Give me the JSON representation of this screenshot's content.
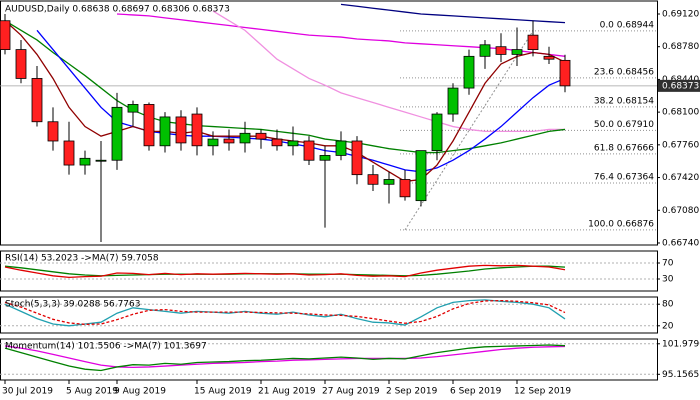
{
  "chart_data": [
    {
      "type": "candlestick",
      "title": "AUDUSD,Daily  0.68638 0.68697 0.68306 0.68373",
      "categories": [
        "30 Jul 2019",
        null,
        null,
        null,
        "5 Aug 2019",
        null,
        null,
        "9 Aug 2019",
        null,
        null,
        null,
        null,
        "15 Aug 2019",
        null,
        null,
        null,
        "21 Aug 2019",
        null,
        null,
        null,
        "27 Aug 2019",
        null,
        null,
        null,
        "2 Sep 2019",
        null,
        null,
        null,
        "6 Sep 2019",
        null,
        null,
        null,
        "12 Sep 2019",
        null,
        null,
        null
      ],
      "open": [
        0.6905,
        0.6875,
        0.6845,
        0.68,
        0.678,
        0.6755,
        0.676,
        0.676,
        0.681,
        0.6818,
        0.6775,
        0.6805,
        0.6808,
        0.6775,
        0.6782,
        0.6778,
        0.6788,
        0.6782,
        0.6775,
        0.678,
        0.676,
        0.6765,
        0.678,
        0.6745,
        0.6735,
        0.674,
        0.6718,
        0.677,
        0.6808,
        0.6835,
        0.6868,
        0.6878,
        0.687,
        0.689,
        0.6868,
        0.68638
      ],
      "high": [
        0.6912,
        0.6885,
        0.6858,
        0.6815,
        0.68,
        0.677,
        0.678,
        0.683,
        0.6822,
        0.682,
        0.681,
        0.6812,
        0.6815,
        0.679,
        0.6792,
        0.68,
        0.6792,
        0.6792,
        0.6795,
        0.6785,
        0.6775,
        0.679,
        0.6785,
        0.6755,
        0.6748,
        0.675,
        0.677,
        0.681,
        0.684,
        0.6875,
        0.6885,
        0.6892,
        0.6898,
        0.6905,
        0.6878,
        0.68697
      ],
      "low": [
        0.687,
        0.684,
        0.6795,
        0.677,
        0.6745,
        0.6745,
        0.6675,
        0.675,
        0.6795,
        0.677,
        0.6768,
        0.677,
        0.6765,
        0.6765,
        0.677,
        0.6768,
        0.6772,
        0.677,
        0.6765,
        0.6755,
        0.669,
        0.676,
        0.6735,
        0.6728,
        0.6715,
        0.6718,
        0.6712,
        0.676,
        0.68,
        0.6828,
        0.6855,
        0.6862,
        0.6858,
        0.6868,
        0.686,
        0.68306
      ],
      "close": [
        0.6875,
        0.6845,
        0.68,
        0.678,
        0.6755,
        0.6762,
        0.676,
        0.6815,
        0.6818,
        0.6775,
        0.6805,
        0.6778,
        0.6775,
        0.6782,
        0.6778,
        0.6788,
        0.6782,
        0.6775,
        0.678,
        0.676,
        0.6765,
        0.678,
        0.6745,
        0.6735,
        0.674,
        0.6722,
        0.677,
        0.6808,
        0.6835,
        0.6868,
        0.688,
        0.687,
        0.6875,
        0.6875,
        0.6865,
        0.68373
      ],
      "up_color": "#00c000",
      "down_color": "#ff2020",
      "series": [
        {
          "color": "#000080",
          "values": [
            null,
            null,
            null,
            null,
            null,
            null,
            null,
            null,
            null,
            null,
            null,
            null,
            null,
            null,
            null,
            null,
            null,
            null,
            null,
            null,
            null,
            0.6922,
            0.692,
            0.6918,
            0.6916,
            0.6914,
            0.6912,
            0.6911,
            0.691,
            0.6909,
            0.6908,
            0.6907,
            0.6906,
            0.6905,
            0.6904,
            0.6903
          ]
        },
        {
          "color": "#e000e0",
          "values": [
            null,
            null,
            null,
            null,
            null,
            null,
            null,
            0.6912,
            0.6911,
            0.691,
            0.6908,
            0.6906,
            0.6904,
            0.6902,
            0.69,
            0.6898,
            0.6896,
            0.6894,
            0.6892,
            0.689,
            0.6889,
            0.6888,
            0.6886,
            0.6885,
            0.6884,
            0.6882,
            0.6881,
            0.688,
            0.6879,
            0.6878,
            0.6877,
            0.6876,
            0.6874,
            0.6872,
            0.687,
            0.6868
          ]
        },
        {
          "color": "#f090e0",
          "values": [
            null,
            null,
            null,
            null,
            null,
            null,
            null,
            null,
            null,
            null,
            null,
            null,
            null,
            0.6915,
            0.6905,
            0.6895,
            0.688,
            0.6865,
            0.6855,
            0.6845,
            0.6838,
            0.683,
            0.6825,
            0.682,
            0.6815,
            0.681,
            0.6805,
            0.68,
            0.6795,
            0.6792,
            0.679,
            0.679,
            0.679,
            0.679,
            0.6792,
            0.6792
          ]
        },
        {
          "color": "#008000",
          "values": [
            0.6905,
            0.6895,
            0.6885,
            0.6872,
            0.686,
            0.6848,
            0.6835,
            0.6822,
            0.6812,
            0.6805,
            0.68,
            0.6798,
            0.6796,
            0.6795,
            0.6794,
            0.6793,
            0.6792,
            0.679,
            0.6788,
            0.6786,
            0.6782,
            0.678,
            0.6778,
            0.6775,
            0.6772,
            0.677,
            0.6768,
            0.6768,
            0.677,
            0.6772,
            0.6775,
            0.6778,
            0.6782,
            0.6786,
            0.679,
            0.6792
          ]
        },
        {
          "color": "#0000ff",
          "values": [
            null,
            null,
            0.6895,
            0.6875,
            0.6855,
            0.6835,
            0.6815,
            0.68,
            0.6795,
            0.679,
            0.6788,
            0.6786,
            0.6785,
            0.6785,
            0.6784,
            0.6783,
            0.6782,
            0.678,
            0.6777,
            0.6774,
            0.677,
            0.6768,
            0.6764,
            0.676,
            0.6755,
            0.675,
            0.6748,
            0.6752,
            0.676,
            0.677,
            0.6782,
            0.6795,
            0.681,
            0.6825,
            0.6838,
            0.6845
          ]
        },
        {
          "color": "#900000",
          "values": [
            0.6905,
            0.689,
            0.687,
            0.6845,
            0.6815,
            0.6795,
            0.6785,
            0.679,
            0.6795,
            0.679,
            0.679,
            0.6788,
            0.679,
            0.6785,
            0.6785,
            0.6785,
            0.6785,
            0.6782,
            0.678,
            0.6778,
            0.6775,
            0.6775,
            0.6768,
            0.6758,
            0.6748,
            0.6738,
            0.674,
            0.6755,
            0.678,
            0.681,
            0.684,
            0.686,
            0.6868,
            0.6872,
            0.687,
            0.6862
          ]
        }
      ],
      "levels": [
        {
          "label": "0.0 0.68944",
          "value": 0.68944
        },
        {
          "label": "23.6 0.68456",
          "value": 0.68456
        },
        {
          "label": "38.2 0.68154",
          "value": 0.68154
        },
        {
          "label": "50.0 0.67910",
          "value": 0.6791
        },
        {
          "label": "61.8 0.67666",
          "value": 0.67666
        },
        {
          "label": "76.4 0.67364",
          "value": 0.67364
        },
        {
          "label": "100.0 0.66876",
          "value": 0.66876
        }
      ],
      "current_price": {
        "value": 0.68373,
        "label": "0.68373"
      },
      "ylim": [
        0.66719,
        0.69255
      ],
      "yticks": [
        {
          "value": 0.6912,
          "label": "0.69120"
        },
        {
          "value": 0.6878,
          "label": "0.68780"
        },
        {
          "value": 0.6844,
          "label": "0.68440"
        },
        {
          "value": 0.681,
          "label": "0.68100"
        },
        {
          "value": 0.6776,
          "label": "0.67760"
        },
        {
          "value": 0.6742,
          "label": "0.67420"
        },
        {
          "value": 0.6708,
          "label": "0.67080"
        },
        {
          "value": 0.6674,
          "label": "0.66740"
        }
      ]
    },
    {
      "type": "line",
      "title": "RSI(14) 53.2023 ->MA(7) 59.7058",
      "ylim": [
        0,
        100
      ],
      "yticks": [
        70,
        30
      ],
      "series": [
        {
          "color": "#008000",
          "values": [
            62,
            58,
            53,
            48,
            43,
            40,
            38,
            39,
            40,
            41,
            42,
            42,
            42,
            42,
            42,
            43,
            43,
            43,
            43,
            42,
            42,
            42,
            41,
            40,
            39,
            38,
            39,
            42,
            46,
            50,
            55,
            58,
            60,
            62,
            62,
            59.7058
          ]
        },
        {
          "color": "#e00000",
          "values": [
            60,
            52,
            45,
            38,
            34,
            36,
            37,
            45,
            44,
            41,
            44,
            41,
            43,
            42,
            43,
            44,
            43,
            42,
            43,
            40,
            41,
            43,
            39,
            37,
            38,
            36,
            45,
            52,
            57,
            62,
            64,
            63,
            64,
            62,
            60,
            53.2023
          ]
        }
      ]
    },
    {
      "type": "line",
      "title": "Stoch(5,3,3) 39.0288 56.7763",
      "ylim": [
        0,
        100
      ],
      "yticks": [
        80,
        20
      ],
      "series": [
        {
          "color": "#20a0b0",
          "values": [
            80,
            60,
            40,
            25,
            20,
            25,
            30,
            55,
            70,
            65,
            60,
            55,
            60,
            58,
            55,
            60,
            55,
            52,
            58,
            50,
            45,
            52,
            40,
            30,
            28,
            22,
            45,
            70,
            85,
            90,
            92,
            88,
            85,
            80,
            70,
            39.0288
          ]
        },
        {
          "color": "#e00000",
          "style": "dashed",
          "values": [
            85,
            72,
            55,
            38,
            28,
            24,
            25,
            37,
            52,
            63,
            65,
            60,
            58,
            58,
            58,
            58,
            57,
            56,
            55,
            53,
            50,
            49,
            46,
            40,
            33,
            27,
            32,
            46,
            67,
            82,
            89,
            90,
            88,
            84,
            78,
            56.7763
          ]
        }
      ]
    },
    {
      "type": "line",
      "title": "Momentum(14) 101.5506 ->MA(7) 101.3697",
      "ylim": [
        93.88,
        103.05
      ],
      "yticks": [
        101.9796,
        95.1565
      ],
      "series": [
        {
          "color": "#e000e0",
          "values": [
            101.5,
            101.0,
            100.4,
            99.6,
            98.8,
            98.0,
            97.2,
            96.8,
            96.7,
            96.8,
            97.0,
            97.2,
            97.4,
            97.6,
            97.7,
            97.8,
            98.0,
            98.1,
            98.3,
            98.4,
            98.5,
            98.6,
            98.7,
            98.7,
            98.7,
            98.7,
            98.8,
            99.1,
            99.5,
            99.9,
            100.3,
            100.7,
            101.0,
            101.2,
            101.3,
            101.3697
          ]
        },
        {
          "color": "#008000",
          "values": [
            101.0,
            100.0,
            99.0,
            98.0,
            97.0,
            96.3,
            96.0,
            96.8,
            97.3,
            97.2,
            97.6,
            97.4,
            97.8,
            97.9,
            98.0,
            98.2,
            98.3,
            98.5,
            98.7,
            98.6,
            98.8,
            99.0,
            98.8,
            98.5,
            98.7,
            98.6,
            99.3,
            100.0,
            100.5,
            101.0,
            101.3,
            101.4,
            101.5,
            101.6,
            101.7,
            101.5506
          ]
        }
      ]
    }
  ]
}
